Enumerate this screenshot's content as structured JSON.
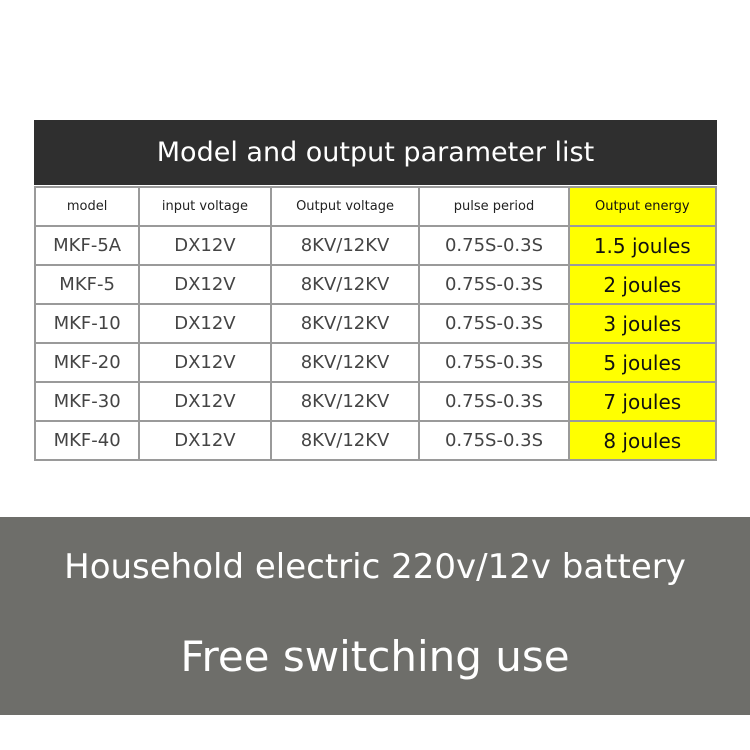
{
  "title": "Model and output parameter list",
  "headers": [
    "model",
    "input voltage",
    "Output voltage",
    "pulse period",
    "Output energy"
  ],
  "rows": [
    [
      "MKF-5A",
      "DX12V",
      "8KV/12KV",
      "0.75S-0.3S",
      "1.5 joules"
    ],
    [
      "MKF-5",
      "DX12V",
      "8KV/12KV",
      "0.75S-0.3S",
      "2 joules"
    ],
    [
      "MKF-10",
      "DX12V",
      "8KV/12KV",
      "0.75S-0.3S",
      "3 joules"
    ],
    [
      "MKF-20",
      "DX12V",
      "8KV/12KV",
      "0.75S-0.3S",
      "5 joules"
    ],
    [
      "MKF-30",
      "DX12V",
      "8KV/12KV",
      "0.75S-0.3S",
      "7 joules"
    ],
    [
      "MKF-40",
      "DX12V",
      "8KV/12KV",
      "0.75S-0.3S",
      "8 joules"
    ]
  ],
  "banner": {
    "line1": "Household electric 220v/12v battery",
    "line2": "Free switching use"
  },
  "colors": {
    "header_bg": "#2f2f2f",
    "highlight": "#ffff00",
    "banner_bg": "#6e6e6a"
  }
}
